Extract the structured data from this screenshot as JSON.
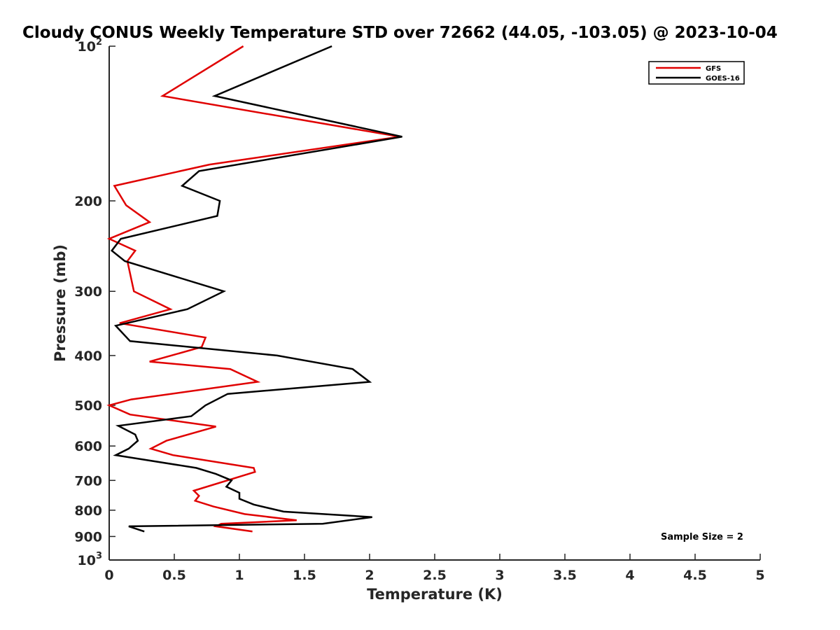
{
  "chart_data": {
    "type": "line",
    "title": "Cloudy CONUS Weekly Temperature STD over 72662 (44.05, -103.05) @ 2023-10-04",
    "xlabel": "Temperature (K)",
    "ylabel": "Pressure (mb)",
    "xlim": [
      0,
      5
    ],
    "ylim": [
      100,
      1000
    ],
    "y_scale": "log",
    "y_reversed": true,
    "grid": false,
    "legend_position": "top-right",
    "x_ticks": [
      "0",
      "0.5",
      "1",
      "1.5",
      "2",
      "2.5",
      "3",
      "3.5",
      "4",
      "4.5",
      "5"
    ],
    "y_ticks": [
      {
        "value": 100,
        "base": "10",
        "exp": "2"
      },
      {
        "value": 200,
        "label": "200"
      },
      {
        "value": 300,
        "label": "300"
      },
      {
        "value": 400,
        "label": "400"
      },
      {
        "value": 500,
        "label": "500"
      },
      {
        "value": 600,
        "label": "600"
      },
      {
        "value": 700,
        "label": "700"
      },
      {
        "value": 800,
        "label": "800"
      },
      {
        "value": 900,
        "label": "900"
      },
      {
        "value": 1000,
        "base": "10",
        "exp": "3"
      }
    ],
    "annotation": "Sample Size = 2",
    "series": [
      {
        "name": "GFS",
        "color": "#e00000",
        "points": [
          [
            1.03,
            100
          ],
          [
            0.41,
            125
          ],
          [
            2.23,
            150
          ],
          [
            0.77,
            170
          ],
          [
            0.04,
            187
          ],
          [
            0.13,
            204
          ],
          [
            0.31,
            220
          ],
          [
            0.0,
            237
          ],
          [
            0.2,
            250
          ],
          [
            0.14,
            262
          ],
          [
            0.19,
            300
          ],
          [
            0.47,
            325
          ],
          [
            0.08,
            346
          ],
          [
            0.74,
            369
          ],
          [
            0.71,
            385
          ],
          [
            0.31,
            411
          ],
          [
            0.93,
            425
          ],
          [
            1.14,
            450
          ],
          [
            0.17,
            487
          ],
          [
            0.0,
            500
          ],
          [
            0.16,
            521
          ],
          [
            0.82,
            550
          ],
          [
            0.44,
            586
          ],
          [
            0.32,
            607
          ],
          [
            0.49,
            625
          ],
          [
            1.11,
            662
          ],
          [
            1.12,
            674
          ],
          [
            0.65,
            733
          ],
          [
            0.69,
            750
          ],
          [
            0.66,
            767
          ],
          [
            0.8,
            787
          ],
          [
            1.04,
            814
          ],
          [
            1.44,
            837
          ],
          [
            0.86,
            850
          ],
          [
            0.82,
            860
          ],
          [
            1.1,
            880
          ]
        ]
      },
      {
        "name": "GOES-16",
        "color": "#000000",
        "points": [
          [
            1.71,
            100
          ],
          [
            0.81,
            125
          ],
          [
            2.25,
            150
          ],
          [
            0.69,
            175
          ],
          [
            0.56,
            187
          ],
          [
            0.85,
            200
          ],
          [
            0.83,
            214
          ],
          [
            0.09,
            237
          ],
          [
            0.02,
            250
          ],
          [
            0.12,
            262
          ],
          [
            0.88,
            300
          ],
          [
            0.6,
            325
          ],
          [
            0.05,
            350
          ],
          [
            0.16,
            375
          ],
          [
            1.29,
            400
          ],
          [
            1.87,
            425
          ],
          [
            2.0,
            450
          ],
          [
            0.91,
            475
          ],
          [
            0.74,
            500
          ],
          [
            0.63,
            525
          ],
          [
            0.07,
            548
          ],
          [
            0.2,
            570
          ],
          [
            0.22,
            586
          ],
          [
            0.15,
            607
          ],
          [
            0.05,
            625
          ],
          [
            0.67,
            662
          ],
          [
            0.82,
            680
          ],
          [
            0.94,
            700
          ],
          [
            0.9,
            720
          ],
          [
            1.0,
            740
          ],
          [
            1.0,
            760
          ],
          [
            1.11,
            780
          ],
          [
            1.34,
            805
          ],
          [
            2.02,
            825
          ],
          [
            1.64,
            850
          ],
          [
            0.15,
            860
          ],
          [
            0.27,
            880
          ]
        ]
      }
    ]
  }
}
